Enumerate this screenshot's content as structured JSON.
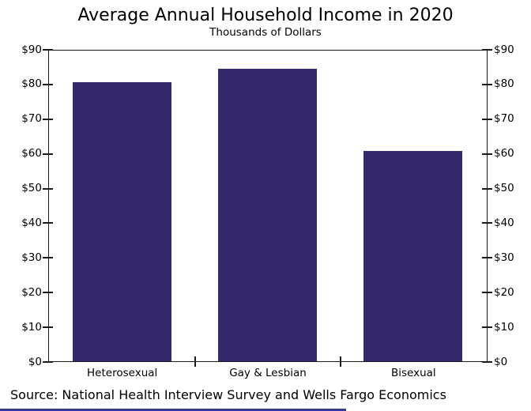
{
  "title": "Average Annual Household Income in 2020",
  "subtitle": "Thousands of Dollars",
  "source_text": "Source: National Health Interview Survey and Wells Fargo Economics",
  "colors": {
    "bar_fill": "#35296b",
    "axis_line": "#1a1a1a",
    "text": "#000000",
    "bottom_strip": "#373995",
    "background": "#ffffff"
  },
  "chart_data": {
    "type": "bar",
    "title": "Average Annual Household Income in 2020",
    "subtitle": "Thousands of Dollars",
    "units": "Thousands of Dollars",
    "categories": [
      "Heterosexual",
      "Gay & Lesbian",
      "Bisexual"
    ],
    "values": [
      81,
      85,
      61
    ],
    "ylim": [
      0,
      90
    ],
    "ytick_step": 10,
    "y_tick_labels": [
      "$0",
      "$10",
      "$20",
      "$30",
      "$40",
      "$50",
      "$60",
      "$70",
      "$80",
      "$90"
    ],
    "dual_y_axis": true,
    "grid": false,
    "legend": "none",
    "bar_color": "#35296b",
    "source": "Source: National Health Interview Survey and Wells Fargo Economics"
  }
}
